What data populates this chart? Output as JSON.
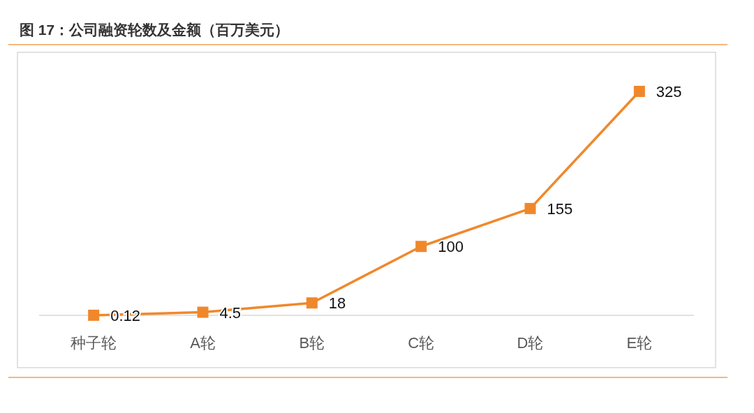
{
  "chart_data": {
    "type": "line",
    "title": "图 17：公司融资轮数及金额（百万美元）",
    "categories": [
      "种子轮",
      "A轮",
      "B轮",
      "C轮",
      "D轮",
      "E轮"
    ],
    "values": [
      0.12,
      4.5,
      18,
      100,
      155,
      325
    ],
    "color": "#f0882b",
    "marker": "square",
    "line_style": "solid",
    "data_labels": true
  }
}
